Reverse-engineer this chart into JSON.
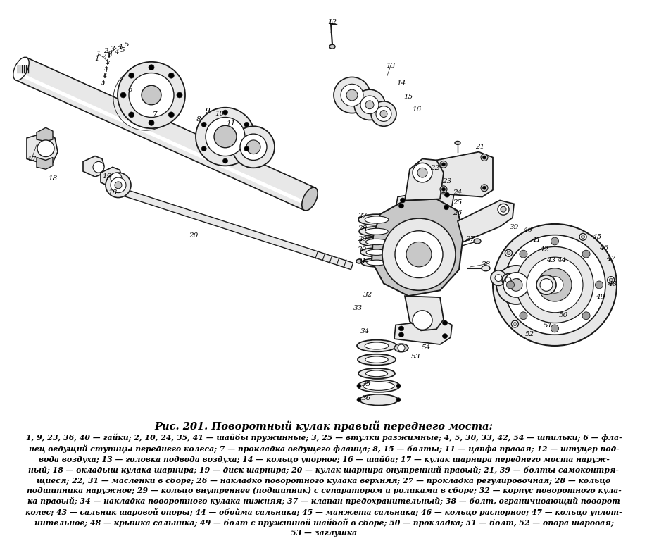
{
  "title": "Рис. 201. Поворотный кулак правый переднего моста:",
  "caption_lines": [
    "1, 9, 23, 36, 40 — гайки; 2, 10, 24, 35, 41 — шайбы пружинные; 3, 25 — втулки разжимные; 4, 5, 30, 33, 42, 54 — шпильки; 6 — фла-",
    "нец ведущий ступицы переднего колеса; 7 — прокладка ведущего фланца; 8, 15 — болты; 11 — цапфа правая; 12 — штуцер под-",
    "вода воздуха; 13 — головка подвода воздуха; 14 — кольцо упорное; 16 — шайба; 17 — кулак шарнира переднего моста наруж-",
    "ный; 18 — вкладыш кулака шарнира; 19 — диск шарнира; 20 — кулак шарнира внутренний правый; 21, 39 — болты самоконтря-",
    "щиеся; 22, 31 — масленки в сборе; 26 — накладко поворотного кулака верхняя; 27 — прокладка регулировочная; 28 — кольцо",
    "подшипника наружное; 29 — кольцо внутреннее (подшипник) с сепаратором и роликами в сборе; 32 — корпус поворотного кула-",
    "ка правый; 34 — накладка поворотного кулака нижняя; 37 — клапан предохранительный; 38 — болт, ограничивающий поворот",
    "колес; 43 — сальник шаровой опоры; 44 — обойма сальника; 45 — манжета сальника; 46 — кольцо распорное; 47 — кольцо уплот-",
    "нительное; 48 — крышка сальника; 49 — болт с пружинной шайбой в сборе; 50 — прокладка; 51 — болт, 52 — опора шаровая;",
    "53 — заглушка"
  ],
  "bg_color": "#ffffff",
  "title_fontsize": 10.5,
  "caption_fontsize": 7.8,
  "fig_width": 9.0,
  "fig_height": 7.48,
  "dpi": 100,
  "lc": "#1a1a1a",
  "fc_light": "#e8e8e8",
  "fc_mid": "#c8c8c8",
  "fc_dark": "#a0a0a0"
}
